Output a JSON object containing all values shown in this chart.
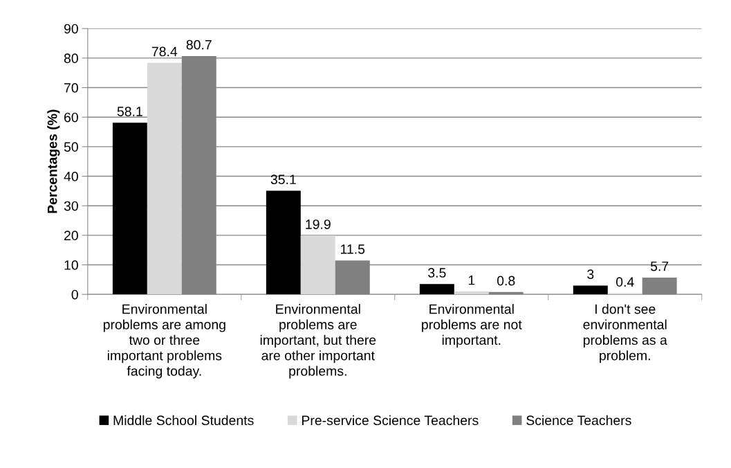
{
  "chart_data": {
    "type": "bar",
    "ylabel": "Percentages (%)",
    "categories": [
      "Environmental\nproblems are among\ntwo or three\nimportant problems\nfacing today.",
      "Environmental\nproblems are\nimportant, but there\nare other important\nproblems.",
      "Environmental\nproblems are not\nimportant.",
      "I don't see\nenvironmental\nproblems as a\nproblem."
    ],
    "series": [
      {
        "name": "Middle School Students",
        "color": "#000000",
        "values": [
          58.1,
          35.1,
          3.5,
          3
        ]
      },
      {
        "name": "Pre-service Science Teachers",
        "color": "#d9d9d9",
        "values": [
          78.4,
          19.9,
          1,
          0.4
        ]
      },
      {
        "name": "Science Teachers",
        "color": "#808080",
        "values": [
          80.7,
          11.5,
          0.8,
          5.7
        ]
      }
    ],
    "ylim": [
      0,
      90
    ],
    "yticks": [
      0,
      10,
      20,
      30,
      40,
      50,
      60,
      70,
      80,
      90
    ],
    "grid": "y",
    "legend": "bottom",
    "data_labels": true
  }
}
